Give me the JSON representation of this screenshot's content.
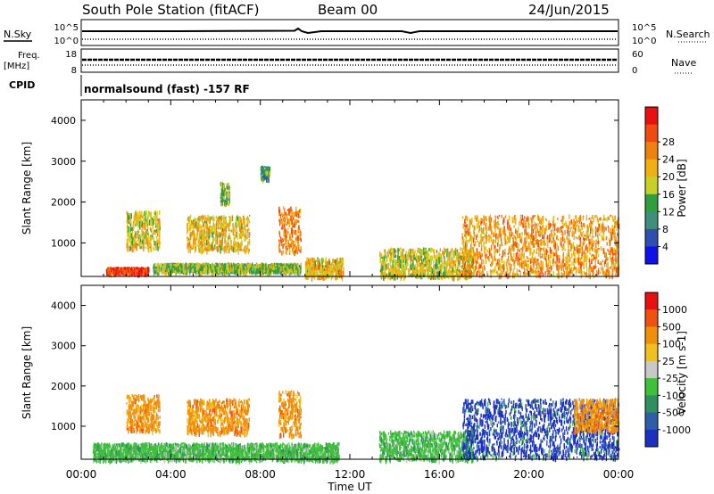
{
  "header": {
    "station": "South Pole Station (fitACF)",
    "beam": "Beam 00",
    "date": "24/Jun/2015"
  },
  "status_panels": {
    "nsky_label": "N.Sky",
    "nsearch_label": "N.Search",
    "left_ticks": [
      "10^5",
      "10^0"
    ],
    "right_ticks": [
      "10^5",
      "10^0"
    ],
    "freq_label": "Freq.",
    "freq_unit": "[MHz]",
    "freq_ticks": [
      "18",
      "8"
    ],
    "nave_label": "Nave",
    "nave_ticks": [
      "60",
      "0"
    ],
    "cpid_label": "CPID",
    "cpid_text": "normalsound (fast) -157 RF"
  },
  "chart_data": [
    {
      "type": "heatmap",
      "name": "power",
      "ylabel": "Slant Range [km]",
      "xlabel": "Time UT",
      "x_ticks": [
        "00:00",
        "04:00",
        "08:00",
        "12:00",
        "16:00",
        "20:00",
        "00:00"
      ],
      "xlim_hours": [
        0,
        24
      ],
      "y_ticks": [
        1000,
        2000,
        3000,
        4000
      ],
      "ylim": [
        180,
        4500
      ],
      "colorbar": {
        "label": "Power [dB]",
        "ticks": [
          "4",
          "8",
          "12",
          "16",
          "20",
          "24",
          "28"
        ],
        "colors": [
          "#1010e8",
          "#2e4fb0",
          "#3f8f7a",
          "#2f9e3c",
          "#c8d028",
          "#f0b010",
          "#f08010",
          "#f04a10",
          "#e81010"
        ]
      },
      "features": [
        {
          "t": [
            1.1,
            3.0
          ],
          "r": [
            300,
            420
          ],
          "v": 0.9
        },
        {
          "t": [
            3.2,
            9.8
          ],
          "r": [
            330,
            520
          ],
          "v": 0.45
        },
        {
          "t": [
            2.0,
            3.5
          ],
          "r": [
            900,
            1800
          ],
          "v": 0.55
        },
        {
          "t": [
            4.7,
            7.5
          ],
          "r": [
            850,
            1700
          ],
          "v": 0.6
        },
        {
          "t": [
            8.8,
            9.8
          ],
          "r": [
            800,
            1900
          ],
          "v": 0.75
        },
        {
          "t": [
            6.2,
            6.6
          ],
          "r": [
            2000,
            2500
          ],
          "v": 0.4
        },
        {
          "t": [
            8.0,
            8.4
          ],
          "r": [
            2600,
            2900
          ],
          "v": 0.35
        },
        {
          "t": [
            10.0,
            11.7
          ],
          "r": [
            200,
            650
          ],
          "v": 0.6
        },
        {
          "t": [
            13.3,
            17.5
          ],
          "r": [
            200,
            900
          ],
          "v": 0.55
        },
        {
          "t": [
            17.0,
            24.0
          ],
          "r": [
            250,
            1700
          ],
          "v": 0.7
        }
      ]
    },
    {
      "type": "heatmap",
      "name": "velocity",
      "ylabel": "Slant Range [km]",
      "xlabel": "Time UT",
      "x_ticks": [
        "00:00",
        "04:00",
        "08:00",
        "12:00",
        "16:00",
        "20:00",
        "00:00"
      ],
      "xlim_hours": [
        0,
        24
      ],
      "y_ticks": [
        1000,
        2000,
        3000,
        4000
      ],
      "ylim": [
        180,
        4500
      ],
      "colorbar": {
        "label": "Velocity [m s-1]",
        "ticks": [
          "1000",
          "500",
          "100",
          "25",
          "-25",
          "-100",
          "-500",
          "-1000"
        ],
        "colors": [
          "#1d2fbf",
          "#2f5ea8",
          "#2f8f5e",
          "#3fc03a",
          "#c8c8c8",
          "#f0c020",
          "#f0900a",
          "#f05010",
          "#e81010"
        ]
      },
      "features": [
        {
          "t": [
            0.5,
            11.5
          ],
          "r": [
            200,
            600
          ],
          "v": "green"
        },
        {
          "t": [
            2.0,
            3.5
          ],
          "r": [
            900,
            1800
          ],
          "v": "orange"
        },
        {
          "t": [
            4.7,
            7.5
          ],
          "r": [
            850,
            1700
          ],
          "v": "orange"
        },
        {
          "t": [
            8.8,
            9.8
          ],
          "r": [
            800,
            1900
          ],
          "v": "orange"
        },
        {
          "t": [
            13.3,
            17.5
          ],
          "r": [
            200,
            900
          ],
          "v": "green"
        },
        {
          "t": [
            17.0,
            24.0
          ],
          "r": [
            250,
            1700
          ],
          "v": "blue"
        },
        {
          "t": [
            22.0,
            24.0
          ],
          "r": [
            900,
            1700
          ],
          "v": "orange"
        }
      ]
    }
  ]
}
